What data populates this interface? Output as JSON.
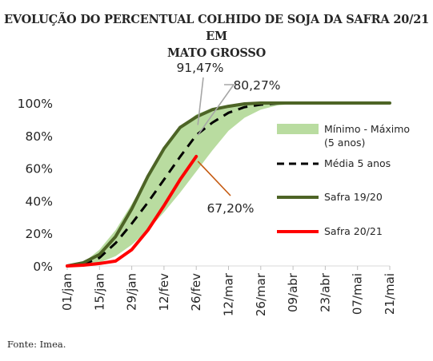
{
  "title_line1": "EVOLUÇÃO DO PERCENTUAL COLHIDO DE SOJA DA SAFRA 20/21 EM",
  "title_line2": "MATO GROSSO",
  "source": "Fonte: Imea.",
  "chart_data": {
    "type": "line",
    "categories": [
      "01/jan",
      "15/jan",
      "29/jan",
      "12/fev",
      "26/fev",
      "12/mar",
      "26/mar",
      "09/abr",
      "23/abr",
      "07/mai",
      "21/mai"
    ],
    "ylim": [
      0,
      100
    ],
    "yticks": [
      "0%",
      "20%",
      "40%",
      "60%",
      "80%",
      "100%"
    ],
    "grid": false,
    "legend_position": "right",
    "colors": {
      "band": "#b9dca0",
      "media": "#000000",
      "safra1920": "#4d6426",
      "safra2021": "#ff0000"
    },
    "series": [
      {
        "name": "Mínimo - Máximo (5 anos)",
        "type": "band",
        "x": [
          0,
          0.5,
          1,
          1.5,
          2,
          2.5,
          3,
          3.5,
          4,
          4.5,
          5,
          5.5,
          6,
          6.5,
          7,
          8,
          9,
          10
        ],
        "min": [
          0,
          0.5,
          2,
          6,
          13,
          22,
          33,
          45,
          58,
          71,
          83,
          91,
          96,
          98.5,
          99.5,
          100,
          100,
          100
        ],
        "max": [
          0,
          2,
          10,
          22,
          38,
          55,
          72,
          85,
          93,
          97,
          99,
          99.5,
          100,
          100,
          100,
          100,
          100,
          100
        ]
      },
      {
        "name": "Média 5 anos",
        "x": [
          0,
          0.5,
          1,
          1.5,
          2,
          2.5,
          3,
          3.5,
          4,
          4.5,
          5,
          5.5,
          6,
          6.5,
          7,
          8,
          9,
          10
        ],
        "values": [
          0,
          1,
          5,
          14,
          26,
          39,
          53,
          67,
          80.27,
          88,
          94,
          97.5,
          99,
          99.7,
          100,
          100,
          100,
          100
        ]
      },
      {
        "name": "Safra 19/20",
        "x": [
          0,
          0.5,
          1,
          1.5,
          2,
          2.5,
          3,
          3.5,
          4,
          4.5,
          5,
          5.5,
          6,
          6.5,
          7,
          8,
          9,
          10
        ],
        "values": [
          0,
          2,
          7,
          18,
          35,
          55,
          72,
          85,
          91.47,
          96,
          98,
          99.5,
          100,
          100,
          100,
          100,
          100,
          100
        ]
      },
      {
        "name": "Safra 20/21",
        "x": [
          0,
          0.5,
          1,
          1.5,
          2,
          2.5,
          3,
          3.5,
          4
        ],
        "values": [
          0,
          0.5,
          1.5,
          3,
          10,
          22,
          37,
          53,
          67.2
        ]
      }
    ],
    "annotations": [
      {
        "text": "91,47%",
        "x": 4,
        "y": 91.47
      },
      {
        "text": "80,27%",
        "x": 4,
        "y": 80.27
      },
      {
        "text": "67,20%",
        "x": 4,
        "y": 67.2
      }
    ],
    "legend": [
      {
        "label_line1": "Mínimo - Máximo",
        "label_line2": "(5 anos)",
        "style": "band"
      },
      {
        "label_line1": "Média 5 anos",
        "style": "dash"
      },
      {
        "label_line1": "Safra 19/20",
        "style": "solid-green"
      },
      {
        "label_line1": "Safra 20/21",
        "style": "solid-red"
      }
    ]
  }
}
